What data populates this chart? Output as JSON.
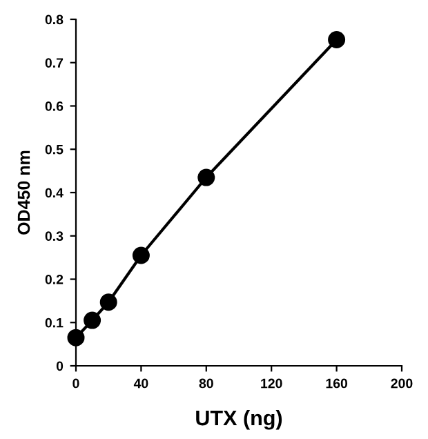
{
  "chart_data": {
    "type": "line",
    "xlabel": "UTX (ng)",
    "ylabel": "OD450 nm",
    "x": [
      0,
      10,
      20,
      40,
      80,
      160
    ],
    "series": [
      {
        "color": "#000000",
        "values": [
          0.065,
          0.105,
          0.147,
          0.255,
          0.435,
          0.753
        ]
      }
    ],
    "xlim": [
      0,
      200
    ],
    "xticks": [
      0,
      40,
      80,
      120,
      160,
      200
    ],
    "ylim": [
      0,
      0.8
    ],
    "yticks": [
      0,
      0.1,
      0.2,
      0.3,
      0.4,
      0.5,
      0.6,
      0.7,
      0.8
    ],
    "marker": "circle",
    "line_style": "solid",
    "grid": false,
    "legend": false
  }
}
